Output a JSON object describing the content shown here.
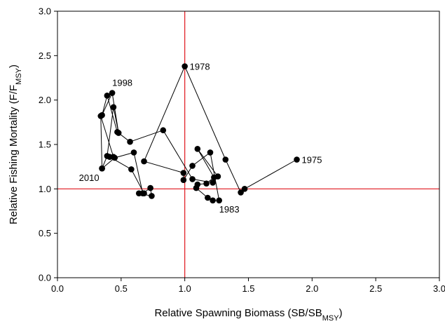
{
  "chart_data": {
    "type": "scatter",
    "title": "",
    "xlabel": {
      "main": "Relative Spawning Biomass (SB/SB",
      "sub": "MSY",
      "tail": ")"
    },
    "ylabel": {
      "main": "Relative Fishing Mortality (F/F",
      "sub": "MSY",
      "tail": ")"
    },
    "xlim": [
      0.0,
      3.0
    ],
    "ylim": [
      0.0,
      3.0
    ],
    "x_ticks": [
      "0.0",
      "0.5",
      "1.0",
      "1.5",
      "2.0",
      "2.5",
      "3.0"
    ],
    "y_ticks": [
      "0.0",
      "0.5",
      "1.0",
      "1.5",
      "2.0",
      "2.5",
      "3.0"
    ],
    "x_tick_values": [
      0,
      0.5,
      1.0,
      1.5,
      2.0,
      2.5,
      3.0
    ],
    "y_tick_values": [
      0,
      0.5,
      1.0,
      1.5,
      2.0,
      2.5,
      3.0
    ],
    "grid": false,
    "reference_lines": [
      {
        "orientation": "vertical",
        "value": 1.0,
        "color": "#e0141c"
      },
      {
        "orientation": "horizontal",
        "value": 1.0,
        "color": "#e0141c"
      }
    ],
    "marker_color": "#000000",
    "connected": true,
    "series": [
      {
        "x": [
          1.88,
          1.47,
          1.44,
          1.32,
          1.0,
          0.68,
          0.99,
          0.99,
          1.06,
          1.2,
          1.27,
          1.22,
          1.18,
          1.09,
          1.1,
          1.17,
          1.23,
          1.1,
          1.26,
          1.22,
          1.06,
          0.83,
          0.57,
          0.47,
          0.39,
          0.35,
          0.43,
          0.48,
          0.44,
          0.39,
          0.35,
          0.34,
          0.44,
          0.41,
          0.58,
          0.68,
          0.64,
          0.74,
          0.73,
          0.67,
          0.6,
          0.45,
          0.35
        ],
        "y": [
          1.33,
          1.0,
          0.96,
          1.33,
          2.38,
          1.31,
          1.18,
          1.1,
          1.26,
          1.41,
          0.87,
          0.87,
          0.9,
          1.01,
          1.05,
          1.06,
          1.13,
          1.45,
          1.14,
          1.07,
          1.11,
          1.66,
          1.53,
          1.64,
          2.05,
          1.83,
          2.08,
          1.63,
          1.92,
          1.37,
          1.23,
          1.82,
          1.36,
          1.36,
          1.22,
          0.95,
          0.95,
          0.92,
          1.01,
          0.95,
          1.41,
          1.35,
          1.23
        ]
      }
    ],
    "annotations": [
      {
        "text": "1975",
        "x": 1.88,
        "y": 1.33,
        "anchor": "right"
      },
      {
        "text": "1978",
        "x": 1.0,
        "y": 2.38,
        "anchor": "right"
      },
      {
        "text": "1983",
        "x": 1.27,
        "y": 0.87,
        "anchor": "below"
      },
      {
        "text": "1998",
        "x": 0.43,
        "y": 2.08,
        "anchor": "above"
      },
      {
        "text": "2010",
        "x": 0.35,
        "y": 1.23,
        "anchor": "below-left"
      }
    ]
  }
}
